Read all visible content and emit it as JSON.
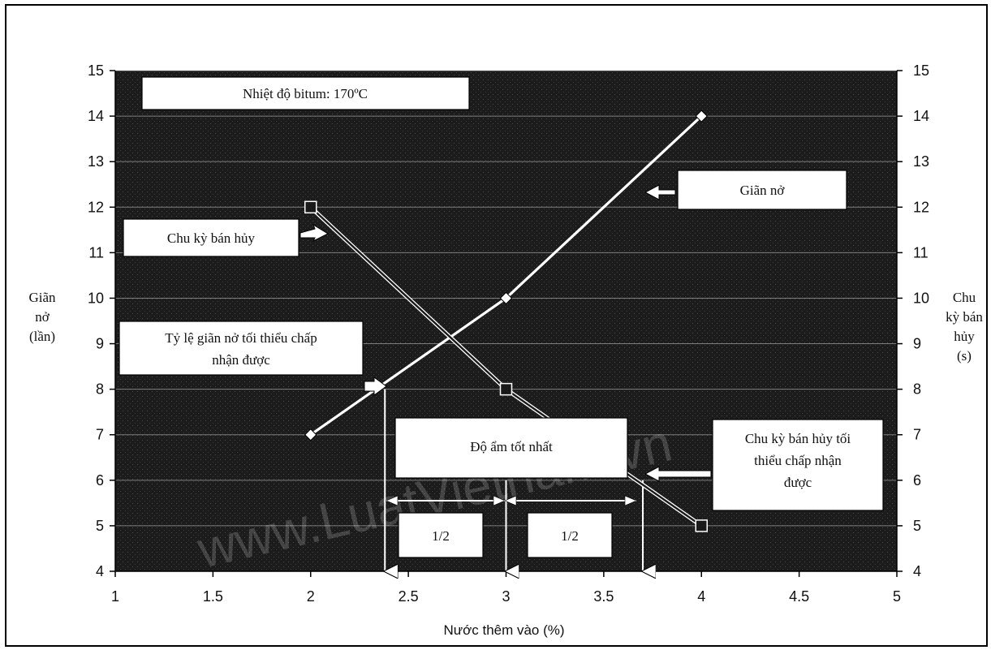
{
  "chart_data": {
    "type": "line",
    "xlabel": "Nước thêm vào (%)",
    "ylabel_left": [
      "Giãn",
      "nở",
      "(lần)"
    ],
    "ylabel_right": [
      "Chu",
      "kỳ bán",
      "hủy",
      "(s)"
    ],
    "xlim": [
      1,
      5
    ],
    "ylim_left": [
      4,
      15
    ],
    "ylim_right": [
      4,
      15
    ],
    "x_ticks": [
      "1",
      "1.5",
      "2",
      "2.5",
      "3",
      "3.5",
      "4",
      "4.5",
      "5"
    ],
    "y_ticks": [
      "4",
      "5",
      "6",
      "7",
      "8",
      "9",
      "10",
      "11",
      "12",
      "13",
      "14",
      "15"
    ],
    "grid": true,
    "background_color": "#1a1a1a",
    "series": [
      {
        "name": "Giãn nở",
        "axis": "left",
        "color": "#ffffff",
        "marker": "diamond",
        "x": [
          2,
          3,
          4
        ],
        "y": [
          7,
          10,
          14
        ]
      },
      {
        "name": "Chu kỳ bán hủy",
        "axis": "right",
        "color": "#1a1a1a",
        "marker": "square",
        "x": [
          2,
          3,
          4
        ],
        "y": [
          12,
          8,
          5
        ]
      }
    ],
    "reference_lines": [
      {
        "name": "min-expansion",
        "x": 2.38,
        "y_from": 8,
        "y_to": 4
      },
      {
        "name": "optimum-moisture",
        "x": 3.0,
        "y_from": 6,
        "y_to": 4
      },
      {
        "name": "min-half-life",
        "x": 3.7,
        "y_from": 6,
        "y_to": 4
      }
    ],
    "annotations": {
      "temperature": "Nhiệt độ bitum: 170ºC",
      "expansion": "Giãn nở",
      "half_life": "Chu kỳ bán hủy",
      "min_expansion": [
        "Tỷ lệ giãn nở tối thiểu chấp",
        "nhận được"
      ],
      "optimum": "Độ ẩm tốt nhất",
      "min_half_life": [
        "Chu kỳ bán hủy tối",
        "thiểu chấp nhận",
        "được"
      ],
      "half_left": "1/2",
      "half_right": "1/2"
    },
    "watermark": "www.LuatVietnam.vn"
  }
}
